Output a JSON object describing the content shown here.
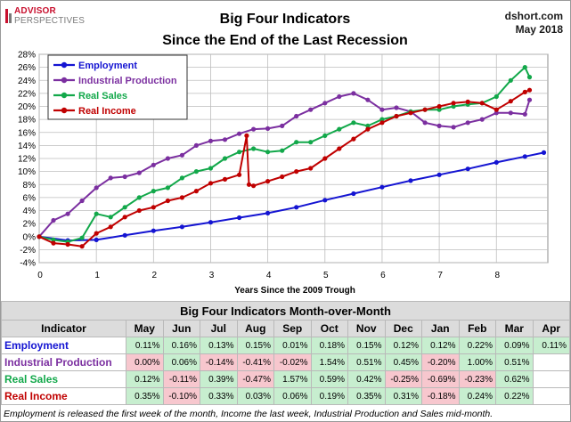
{
  "header": {
    "logo_line1": "ADVISOR",
    "logo_line2": "PERSPECTIVES",
    "title_line1": "Big Four Indicators",
    "title_line2": "Since the End of the Last Recession",
    "credit_line1": "dshort.com",
    "credit_line2": "May 2018"
  },
  "chart_data": {
    "type": "line",
    "title": "Big Four Indicators Since the End of the Last Recession",
    "xlabel": "Years Since the 2009 Trough",
    "ylabel": "",
    "xlim": [
      0,
      8.9
    ],
    "ylim": [
      -4,
      28
    ],
    "x_ticks": [
      "0",
      "1",
      "2",
      "3",
      "4",
      "5",
      "6",
      "7",
      "8"
    ],
    "y_ticks": [
      "-4%",
      "-2%",
      "0%",
      "2%",
      "4%",
      "6%",
      "8%",
      "10%",
      "12%",
      "14%",
      "16%",
      "18%",
      "20%",
      "22%",
      "24%",
      "26%",
      "28%"
    ],
    "grid": true,
    "legend_position": "top-left",
    "series": [
      {
        "name": "Employment",
        "color": "#1414d2",
        "x": [
          0,
          0.5,
          1,
          1.5,
          2,
          2.5,
          3,
          3.5,
          4,
          4.5,
          5,
          5.5,
          6,
          6.5,
          7,
          7.5,
          8,
          8.5,
          8.83
        ],
        "y": [
          0,
          -0.6,
          -0.5,
          0.2,
          0.9,
          1.5,
          2.2,
          2.9,
          3.6,
          4.5,
          5.6,
          6.6,
          7.6,
          8.6,
          9.5,
          10.4,
          11.4,
          12.3,
          12.9
        ]
      },
      {
        "name": "Industrial Production",
        "color": "#7b2fa0",
        "x": [
          0,
          0.25,
          0.5,
          0.75,
          1,
          1.25,
          1.5,
          1.75,
          2,
          2.25,
          2.5,
          2.75,
          3,
          3.25,
          3.5,
          3.75,
          4,
          4.25,
          4.5,
          4.75,
          5,
          5.25,
          5.5,
          5.75,
          6,
          6.25,
          6.5,
          6.75,
          7,
          7.25,
          7.5,
          7.75,
          8,
          8.25,
          8.5,
          8.58
        ],
        "y": [
          0,
          2.5,
          3.5,
          5.5,
          7.5,
          9,
          9.2,
          9.8,
          11,
          12,
          12.5,
          14,
          14.7,
          14.9,
          15.8,
          16.5,
          16.6,
          17,
          18.5,
          19.5,
          20.5,
          21.5,
          22,
          21,
          19.5,
          19.8,
          19.2,
          17.5,
          17,
          16.8,
          17.5,
          18,
          19,
          19,
          18.8,
          21
        ]
      },
      {
        "name": "Real Sales",
        "color": "#12a84a",
        "x": [
          0,
          0.25,
          0.5,
          0.75,
          1,
          1.25,
          1.5,
          1.75,
          2,
          2.25,
          2.5,
          2.75,
          3,
          3.25,
          3.5,
          3.75,
          4,
          4.25,
          4.5,
          4.75,
          5,
          5.25,
          5.5,
          5.75,
          6,
          6.25,
          6.5,
          6.75,
          7,
          7.25,
          7.5,
          7.75,
          8,
          8.25,
          8.5,
          8.58
        ],
        "y": [
          0,
          -0.5,
          -0.8,
          -0.2,
          3.5,
          3,
          4.5,
          6,
          7,
          7.5,
          9,
          10,
          10.5,
          12,
          13,
          13.5,
          13,
          13.2,
          14.5,
          14.5,
          15.5,
          16.5,
          17.5,
          17,
          18,
          18.5,
          19.2,
          19.5,
          19.5,
          20,
          20.3,
          20.5,
          21.5,
          24,
          26,
          24.5
        ]
      },
      {
        "name": "Real Income",
        "color": "#c00000",
        "x": [
          0,
          0.25,
          0.5,
          0.75,
          1,
          1.25,
          1.5,
          1.75,
          2,
          2.25,
          2.5,
          2.75,
          3,
          3.25,
          3.5,
          3.63,
          3.67,
          3.75,
          4,
          4.25,
          4.5,
          4.75,
          5,
          5.25,
          5.5,
          5.75,
          6,
          6.25,
          6.5,
          6.75,
          7,
          7.25,
          7.5,
          7.75,
          8,
          8.25,
          8.5,
          8.58
        ],
        "y": [
          0,
          -1,
          -1.2,
          -1.5,
          0.5,
          1.5,
          3,
          4,
          4.5,
          5.5,
          6,
          7,
          8.2,
          8.8,
          9.5,
          15.5,
          8,
          7.8,
          8.5,
          9.2,
          10,
          10.5,
          12,
          13.5,
          15,
          16.5,
          17.5,
          18.5,
          19,
          19.5,
          20,
          20.5,
          20.7,
          20.5,
          19.5,
          20.8,
          22.2,
          22.5
        ]
      }
    ]
  },
  "table": {
    "title": "Big Four Indicators Month-over-Month",
    "indicator_header": "Indicator",
    "months": [
      "May",
      "Jun",
      "Jul",
      "Aug",
      "Sep",
      "Oct",
      "Nov",
      "Dec",
      "Jan",
      "Feb",
      "Mar",
      "Apr"
    ],
    "rows": [
      {
        "name": "Employment",
        "color": "#1414d2",
        "values": [
          "0.11%",
          "0.16%",
          "0.13%",
          "0.15%",
          "0.01%",
          "0.18%",
          "0.15%",
          "0.12%",
          "0.12%",
          "0.22%",
          "0.09%",
          "0.11%"
        ]
      },
      {
        "name": "Industrial Production",
        "color": "#7b2fa0",
        "values": [
          "0.00%",
          "0.06%",
          "-0.14%",
          "-0.41%",
          "-0.02%",
          "1.54%",
          "0.51%",
          "0.45%",
          "-0.20%",
          "1.00%",
          "0.51%",
          ""
        ]
      },
      {
        "name": "Real Sales",
        "color": "#12a84a",
        "values": [
          "0.12%",
          "-0.11%",
          "0.39%",
          "-0.47%",
          "1.57%",
          "0.59%",
          "0.42%",
          "-0.25%",
          "-0.69%",
          "-0.23%",
          "0.62%",
          ""
        ]
      },
      {
        "name": "Real Income",
        "color": "#c00000",
        "values": [
          "0.35%",
          "-0.10%",
          "0.33%",
          "0.03%",
          "0.06%",
          "0.19%",
          "0.35%",
          "0.31%",
          "-0.18%",
          "0.24%",
          "0.22%",
          ""
        ]
      }
    ]
  },
  "footnote": "Employment is released the first week of the month, Income the last week, Industrial Production and Sales mid-month."
}
